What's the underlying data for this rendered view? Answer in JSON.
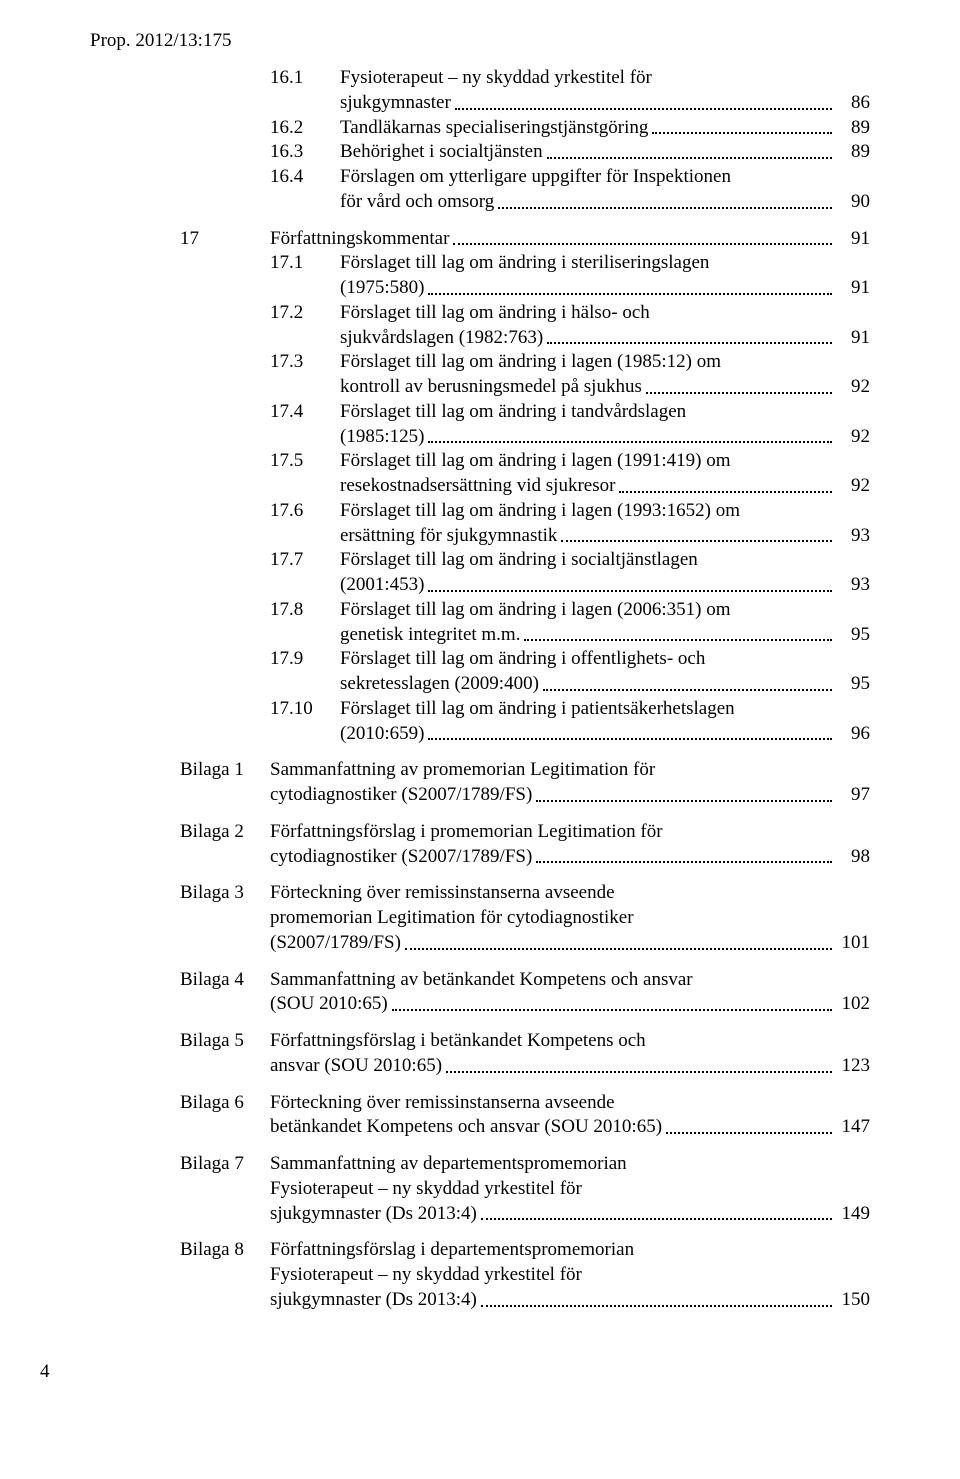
{
  "header": "Prop. 2012/13:175",
  "toc": [
    {
      "num": "16.1",
      "lines": [
        "Fysioterapeut – ny skyddad yrkestitel för",
        "sjukgymnaster"
      ],
      "page": "86"
    },
    {
      "num": "16.2",
      "lines": [
        "Tandläkarnas specialiseringstjänstgöring"
      ],
      "page": "89"
    },
    {
      "num": "16.3",
      "lines": [
        "Behörighet i socialtjänsten"
      ],
      "page": "89"
    },
    {
      "num": "16.4",
      "lines": [
        "Förslagen om ytterligare uppgifter för Inspektionen",
        "för vård och omsorg"
      ],
      "page": "90"
    }
  ],
  "section17": {
    "num": "17",
    "title": "Författningskommentar",
    "page": "91",
    "items": [
      {
        "num": "17.1",
        "lines": [
          "Förslaget till lag om ändring i steriliseringslagen",
          "(1975:580)"
        ],
        "page": "91"
      },
      {
        "num": "17.2",
        "lines": [
          "Förslaget till lag om ändring i hälso- och",
          "sjukvårdslagen (1982:763)"
        ],
        "page": "91"
      },
      {
        "num": "17.3",
        "lines": [
          "Förslaget till lag om ändring i lagen (1985:12) om",
          "kontroll av berusningsmedel på sjukhus"
        ],
        "page": "92"
      },
      {
        "num": "17.4",
        "lines": [
          "Förslaget till lag om ändring i tandvårdslagen",
          "(1985:125)"
        ],
        "page": "92"
      },
      {
        "num": "17.5",
        "lines": [
          "Förslaget till lag om ändring i lagen (1991:419) om",
          "resekostnadsersättning vid sjukresor"
        ],
        "page": "92"
      },
      {
        "num": "17.6",
        "lines": [
          "Förslaget till lag om ändring i lagen (1993:1652) om",
          "ersättning för sjukgymnastik"
        ],
        "page": "93"
      },
      {
        "num": "17.7",
        "lines": [
          "Förslaget till lag om ändring i socialtjänstlagen",
          "(2001:453)"
        ],
        "page": "93"
      },
      {
        "num": "17.8",
        "lines": [
          "Förslaget till lag om ändring i lagen (2006:351) om",
          "genetisk integritet m.m."
        ],
        "page": "95"
      },
      {
        "num": "17.9",
        "lines": [
          "Förslaget till lag om ändring i offentlighets- och",
          "sekretesslagen (2009:400)"
        ],
        "page": "95"
      },
      {
        "num": "17.10",
        "lines": [
          "Förslaget till lag om ändring i patientsäkerhetslagen",
          "(2010:659)"
        ],
        "page": "96"
      }
    ]
  },
  "bilagor": [
    {
      "label": "Bilaga 1",
      "lines": [
        "Sammanfattning av promemorian Legitimation för",
        "cytodiagnostiker (S2007/1789/FS)"
      ],
      "page": "97"
    },
    {
      "label": "Bilaga 2",
      "lines": [
        "Författningsförslag i promemorian Legitimation för",
        "cytodiagnostiker (S2007/1789/FS)"
      ],
      "page": "98"
    },
    {
      "label": "Bilaga 3",
      "lines": [
        "Förteckning över remissinstanserna avseende",
        "promemorian Legitimation för cytodiagnostiker",
        "(S2007/1789/FS)"
      ],
      "page": "101"
    },
    {
      "label": "Bilaga 4",
      "lines": [
        "Sammanfattning av betänkandet Kompetens och ansvar",
        "(SOU 2010:65)"
      ],
      "page": "102"
    },
    {
      "label": "Bilaga 5",
      "lines": [
        "Författningsförslag i betänkandet Kompetens och",
        "ansvar (SOU 2010:65)"
      ],
      "page": "123"
    },
    {
      "label": "Bilaga 6",
      "lines": [
        "Förteckning över remissinstanserna avseende",
        "betänkandet Kompetens och ansvar (SOU 2010:65)"
      ],
      "page": "147"
    },
    {
      "label": "Bilaga 7",
      "lines": [
        "Sammanfattning av departementspromemorian",
        "Fysioterapeut – ny skyddad yrkestitel för",
        "sjukgymnaster (Ds 2013:4)"
      ],
      "page": "149"
    },
    {
      "label": "Bilaga 8",
      "lines": [
        "Författningsförslag i departementspromemorian",
        "Fysioterapeut – ny skyddad yrkestitel för",
        "sjukgymnaster (Ds 2013:4)"
      ],
      "page": "150"
    }
  ],
  "footerPage": "4"
}
